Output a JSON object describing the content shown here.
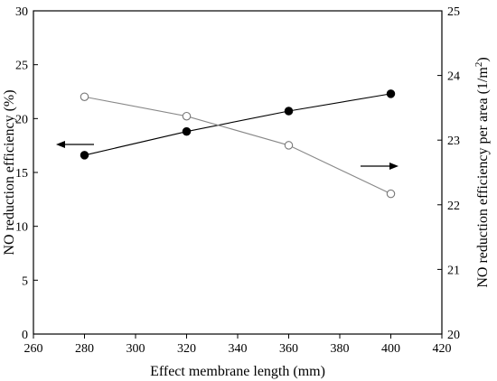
{
  "chart_data": {
    "type": "line",
    "title": "",
    "xlabel": "Effect membrane length (mm)",
    "ylabel_left": "NO reduction efficiency (%)",
    "ylabel_right": "NO reduction efficiency per area (1/m²)",
    "ylabel_right_base": "NO reduction efficiency per area (1/m",
    "ylabel_right_sup": "2",
    "ylabel_right_end": ")",
    "xlim": [
      260,
      420
    ],
    "xticks": [
      260,
      280,
      300,
      320,
      340,
      360,
      380,
      400,
      420
    ],
    "ylim_left": [
      0,
      30
    ],
    "yticks_left": [
      0,
      5,
      10,
      15,
      20,
      25,
      30
    ],
    "ylim_right": [
      20,
      25
    ],
    "yticks_right": [
      20,
      21,
      22,
      23,
      24,
      25
    ],
    "grid": false,
    "series": [
      {
        "axis": "left",
        "marker": "filled-circle",
        "color": "#000000",
        "x": [
          280,
          320,
          360,
          400
        ],
        "y": [
          16.6,
          18.8,
          20.7,
          22.3
        ]
      },
      {
        "axis": "right",
        "marker": "open-circle",
        "color": "#888888",
        "x": [
          280,
          320,
          360,
          400
        ],
        "y": [
          23.67,
          23.37,
          22.92,
          22.17
        ]
      }
    ],
    "annotations": [
      {
        "type": "arrow",
        "direction": "left",
        "indicates": "left-axis series"
      },
      {
        "type": "arrow",
        "direction": "right",
        "indicates": "right-axis series"
      }
    ]
  }
}
